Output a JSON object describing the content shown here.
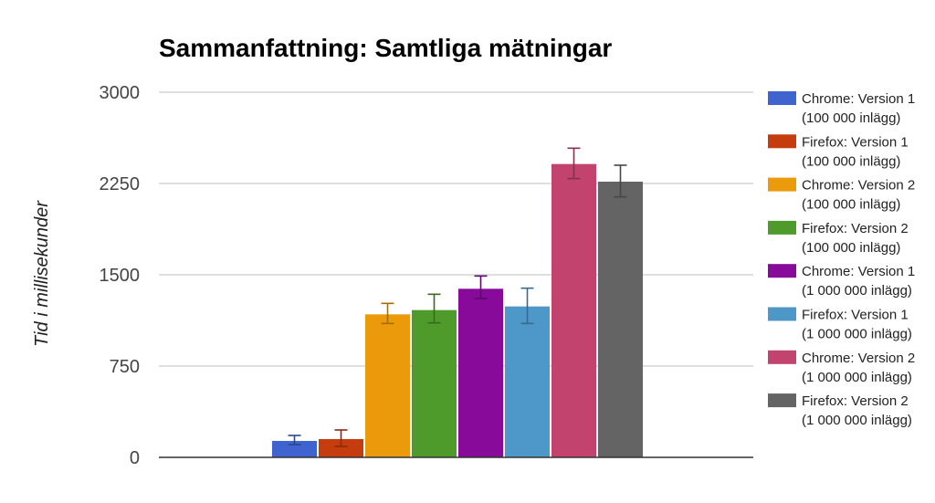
{
  "chart_data": {
    "type": "bar",
    "title": "Sammanfattning: Samtliga mätningar",
    "xlabel": "",
    "ylabel": "Tid i millisekunder",
    "ylim": [
      0,
      3000
    ],
    "yticks": [
      {
        "value": 0,
        "label": "0"
      },
      {
        "value": 750,
        "label": "750"
      },
      {
        "value": 1500,
        "label": "1500"
      },
      {
        "value": 2250,
        "label": "2250"
      },
      {
        "value": 3000,
        "label": "3000"
      }
    ],
    "grid": true,
    "legend_position": "right",
    "series": [
      {
        "name": "Chrome: Version 1",
        "sub": "(100 000 inlägg)",
        "value": 135,
        "err_low": 105,
        "err_high": 180,
        "color": "#3f63cf"
      },
      {
        "name": "Firefox: Version 1",
        "sub": "(100 000 inlägg)",
        "value": 150,
        "err_low": 90,
        "err_high": 225,
        "color": "#c53c0e"
      },
      {
        "name": "Chrome: Version 2",
        "sub": "(100 000 inlägg)",
        "value": 1175,
        "err_low": 1100,
        "err_high": 1265,
        "color": "#eb9a0b"
      },
      {
        "name": "Firefox: Version 2",
        "sub": "(100 000 inlägg)",
        "value": 1210,
        "err_low": 1105,
        "err_high": 1340,
        "color": "#4e9a2a"
      },
      {
        "name": "Chrome: Version 1",
        "sub": "(1 000 000 inlägg)",
        "value": 1385,
        "err_low": 1305,
        "err_high": 1490,
        "color": "#870a9a"
      },
      {
        "name": "Firefox: Version 1",
        "sub": "(1 000 000 inlägg)",
        "value": 1240,
        "err_low": 1100,
        "err_high": 1390,
        "color": "#4e98c9"
      },
      {
        "name": "Chrome: Version 2",
        "sub": "(1 000 000 inlägg)",
        "value": 2410,
        "err_low": 2290,
        "err_high": 2540,
        "color": "#c2436e"
      },
      {
        "name": "Firefox: Version 2",
        "sub": "(1 000 000 inlägg)",
        "value": 2265,
        "err_low": 2140,
        "err_high": 2400,
        "color": "#646464"
      }
    ]
  }
}
